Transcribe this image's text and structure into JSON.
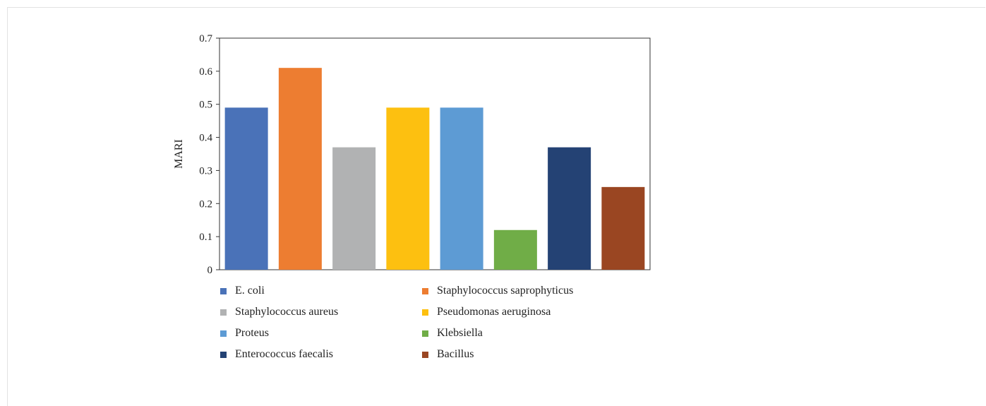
{
  "chart_data": {
    "type": "bar",
    "categories": [
      "E. coli",
      "Staphylococcus saprophyticus",
      "Staphylococcus aureus",
      "Pseudomonas aeruginosa",
      "Proteus",
      "Klebsiella",
      "Enterococcus faecalis",
      "Bacillus"
    ],
    "values": [
      0.49,
      0.61,
      0.37,
      0.49,
      0.49,
      0.12,
      0.37,
      0.25
    ],
    "colors": [
      "#4a72b8",
      "#ed7d31",
      "#b1b2b3",
      "#fdc010",
      "#5d9bd4",
      "#70ad47",
      "#244274",
      "#9a4622"
    ],
    "ylabel": "MARI",
    "ylim": [
      0,
      0.7
    ],
    "yticks": [
      "0",
      "0.1",
      "0.2",
      "0.3",
      "0.4",
      "0.5",
      "0.6",
      "0.7"
    ],
    "grid": false,
    "legend_position": "bottom"
  }
}
